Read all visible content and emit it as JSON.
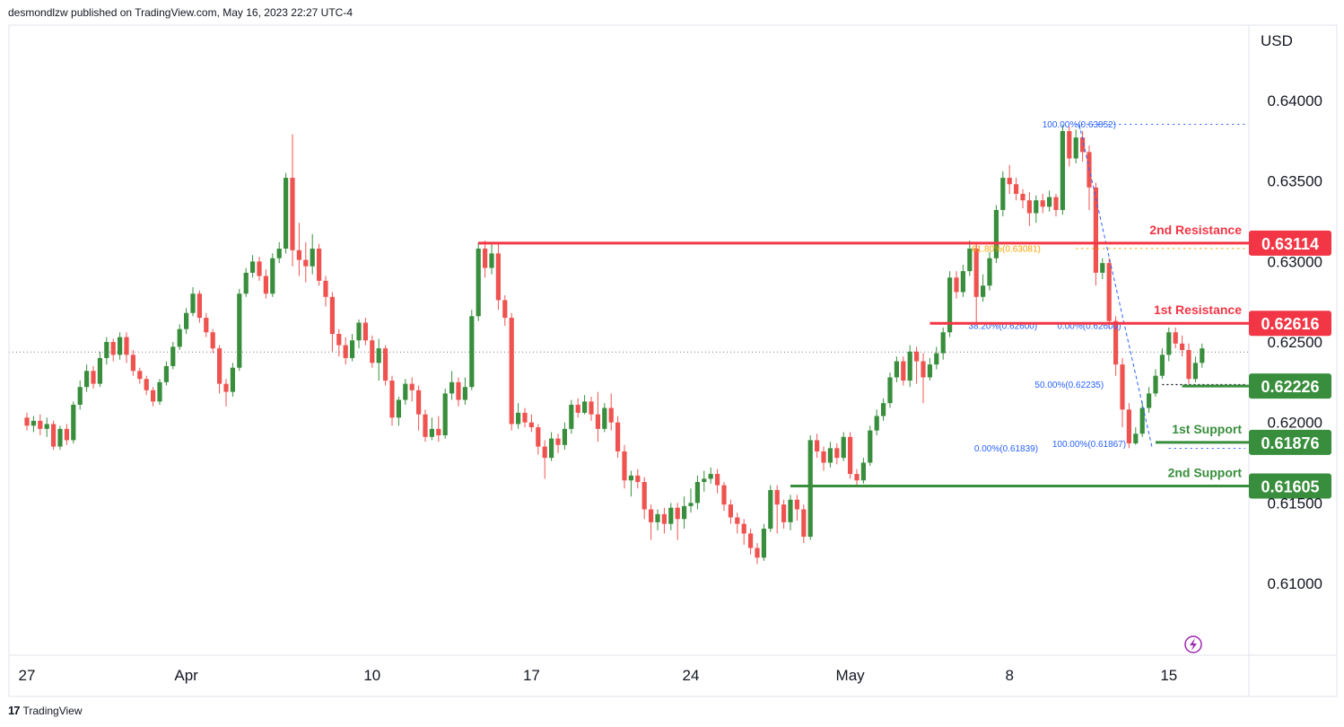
{
  "header": {
    "text": "desmondlzw published on TradingView.com, May 16, 2023 22:27 UTC-4"
  },
  "footer": {
    "logo": "17",
    "brand": "TradingView"
  },
  "chart_data": {
    "type": "candlestick",
    "currency": "USD",
    "y_ticks": [
      0.61,
      0.615,
      0.62,
      0.625,
      0.63,
      0.635,
      0.64
    ],
    "y_tick_labels": [
      "0.61000",
      "0.61500",
      "0.62000",
      "0.62500",
      "0.63000",
      "0.63500",
      "0.64000"
    ],
    "ylim": [
      0.6075,
      0.642
    ],
    "x_ticks": [
      {
        "label": "27",
        "index": 0
      },
      {
        "label": "Apr",
        "index": 24
      },
      {
        "label": "10",
        "index": 52
      },
      {
        "label": "17",
        "index": 76
      },
      {
        "label": "24",
        "index": 100
      },
      {
        "label": "May",
        "index": 124
      },
      {
        "label": "8",
        "index": 148
      },
      {
        "label": "15",
        "index": 172
      }
    ],
    "current_price": 0.62437,
    "levels": [
      {
        "name": "2nd Resistance",
        "price": 0.63114,
        "label": "0.63114",
        "color": "#f23645",
        "start_index": 68
      },
      {
        "name": "1st Resistance",
        "price": 0.62616,
        "label": "0.62616",
        "color": "#f23645",
        "start_index": 136
      },
      {
        "name": "",
        "price": 0.62226,
        "label": "0.62226",
        "color": "#388e3c",
        "start_index": 174
      },
      {
        "name": "1st Support",
        "price": 0.61876,
        "label": "0.61876",
        "color": "#388e3c",
        "start_index": 170
      },
      {
        "name": "2nd Support",
        "price": 0.61605,
        "label": "0.61605",
        "color": "#388e3c",
        "start_index": 115
      }
    ],
    "fib_labels": [
      {
        "text": "100.00%(0.63852)",
        "price": 0.63852,
        "index": 158.5,
        "color": "#2962ff"
      },
      {
        "text": "61.80%(0.63081)",
        "price": 0.63081,
        "index": 147.5,
        "color": "#f7a600"
      },
      {
        "text": "38.20%(0.62600)",
        "price": 0.626,
        "index": 147,
        "color": "#2962ff"
      },
      {
        "text": "0.00%(0.62600)",
        "price": 0.626,
        "index": 160,
        "color": "#2962ff"
      },
      {
        "text": "50.00%(0.62235)",
        "price": 0.62235,
        "index": 157,
        "color": "#2962ff"
      },
      {
        "text": "100.00%(0.61867)",
        "price": 0.61867,
        "index": 160,
        "color": "#2962ff"
      },
      {
        "text": "0.00%(0.61839)",
        "price": 0.61839,
        "index": 147.5,
        "color": "#2962ff"
      }
    ],
    "candles": [
      [
        0.6203,
        0.6198,
        0.6206,
        0.6195
      ],
      [
        0.6198,
        0.6201,
        0.6204,
        0.6194
      ],
      [
        0.6201,
        0.6196,
        0.6205,
        0.6192
      ],
      [
        0.6196,
        0.6199,
        0.6203,
        0.6191
      ],
      [
        0.6199,
        0.6185,
        0.6201,
        0.6183
      ],
      [
        0.6185,
        0.6196,
        0.6198,
        0.6183
      ],
      [
        0.6196,
        0.6189,
        0.6199,
        0.6186
      ],
      [
        0.6189,
        0.6211,
        0.6213,
        0.6187
      ],
      [
        0.6211,
        0.6222,
        0.6226,
        0.6208
      ],
      [
        0.6222,
        0.6232,
        0.6236,
        0.6219
      ],
      [
        0.6232,
        0.6224,
        0.6235,
        0.6221
      ],
      [
        0.6224,
        0.624,
        0.6244,
        0.6222
      ],
      [
        0.624,
        0.625,
        0.6253,
        0.6236
      ],
      [
        0.625,
        0.6242,
        0.6252,
        0.6238
      ],
      [
        0.6242,
        0.6253,
        0.6256,
        0.6239
      ],
      [
        0.6253,
        0.6242,
        0.6256,
        0.6237
      ],
      [
        0.6242,
        0.6232,
        0.6245,
        0.6229
      ],
      [
        0.6232,
        0.6227,
        0.6234,
        0.6224
      ],
      [
        0.6227,
        0.622,
        0.6229,
        0.6217
      ],
      [
        0.622,
        0.6213,
        0.6222,
        0.621
      ],
      [
        0.6213,
        0.6225,
        0.6227,
        0.6211
      ],
      [
        0.6225,
        0.6235,
        0.6238,
        0.6223
      ],
      [
        0.6235,
        0.6247,
        0.625,
        0.6233
      ],
      [
        0.6247,
        0.6258,
        0.6261,
        0.6245
      ],
      [
        0.6258,
        0.6268,
        0.6271,
        0.6255
      ],
      [
        0.6268,
        0.628,
        0.6284,
        0.6266
      ],
      [
        0.628,
        0.6265,
        0.6282,
        0.6262
      ],
      [
        0.6265,
        0.6256,
        0.6268,
        0.6253
      ],
      [
        0.6256,
        0.6246,
        0.6258,
        0.6243
      ],
      [
        0.6246,
        0.6224,
        0.6248,
        0.6218
      ],
      [
        0.6224,
        0.6219,
        0.6227,
        0.621
      ],
      [
        0.6219,
        0.6234,
        0.6237,
        0.6216
      ],
      [
        0.6234,
        0.628,
        0.6283,
        0.6232
      ],
      [
        0.628,
        0.6293,
        0.6296,
        0.6278
      ],
      [
        0.6293,
        0.63,
        0.6304,
        0.629
      ],
      [
        0.63,
        0.6291,
        0.6303,
        0.6288
      ],
      [
        0.6291,
        0.628,
        0.6295,
        0.6277
      ],
      [
        0.628,
        0.6302,
        0.6305,
        0.6278
      ],
      [
        0.6302,
        0.6308,
        0.6312,
        0.6299
      ],
      [
        0.6308,
        0.6352,
        0.6355,
        0.6305
      ],
      [
        0.6352,
        0.6307,
        0.6379,
        0.6297
      ],
      [
        0.6307,
        0.6301,
        0.6324,
        0.6291
      ],
      [
        0.6301,
        0.6297,
        0.6312,
        0.6287
      ],
      [
        0.6297,
        0.6308,
        0.6317,
        0.6292
      ],
      [
        0.6308,
        0.6288,
        0.6311,
        0.6285
      ],
      [
        0.6288,
        0.6278,
        0.6291,
        0.6272
      ],
      [
        0.6278,
        0.6255,
        0.6281,
        0.6244
      ],
      [
        0.6255,
        0.6248,
        0.6258,
        0.6241
      ],
      [
        0.6248,
        0.624,
        0.6253,
        0.6236
      ],
      [
        0.624,
        0.6251,
        0.6255,
        0.6238
      ],
      [
        0.6251,
        0.6262,
        0.6264,
        0.6246
      ],
      [
        0.6262,
        0.6251,
        0.6265,
        0.6248
      ],
      [
        0.6251,
        0.6237,
        0.6254,
        0.6234
      ],
      [
        0.6237,
        0.6246,
        0.6252,
        0.6226
      ],
      [
        0.6246,
        0.6226,
        0.6248,
        0.6223
      ],
      [
        0.6226,
        0.6203,
        0.6229,
        0.6198
      ],
      [
        0.6203,
        0.6214,
        0.6216,
        0.6198
      ],
      [
        0.6214,
        0.6224,
        0.6227,
        0.6211
      ],
      [
        0.6224,
        0.622,
        0.6228,
        0.6213
      ],
      [
        0.622,
        0.6205,
        0.6223,
        0.6195
      ],
      [
        0.6205,
        0.6191,
        0.6208,
        0.6188
      ],
      [
        0.6191,
        0.6196,
        0.6203,
        0.6189
      ],
      [
        0.6196,
        0.6192,
        0.6204,
        0.6188
      ],
      [
        0.6192,
        0.6218,
        0.6221,
        0.619
      ],
      [
        0.6218,
        0.6225,
        0.6232,
        0.6214
      ],
      [
        0.6225,
        0.6214,
        0.6228,
        0.621
      ],
      [
        0.6214,
        0.6222,
        0.6228,
        0.6211
      ],
      [
        0.6222,
        0.6266,
        0.627,
        0.622
      ],
      [
        0.6266,
        0.6308,
        0.6312,
        0.6263
      ],
      [
        0.6308,
        0.6296,
        0.6313,
        0.629
      ],
      [
        0.6296,
        0.6305,
        0.6311,
        0.6292
      ],
      [
        0.6305,
        0.6276,
        0.6312,
        0.627
      ],
      [
        0.6276,
        0.6265,
        0.6279,
        0.626
      ],
      [
        0.6265,
        0.6199,
        0.6268,
        0.6195
      ],
      [
        0.6199,
        0.6206,
        0.6212,
        0.6196
      ],
      [
        0.6206,
        0.62,
        0.6209,
        0.6197
      ],
      [
        0.62,
        0.6197,
        0.6205,
        0.6194
      ],
      [
        0.6197,
        0.6185,
        0.6199,
        0.618
      ],
      [
        0.6185,
        0.6178,
        0.6189,
        0.6165
      ],
      [
        0.6178,
        0.619,
        0.6194,
        0.6176
      ],
      [
        0.619,
        0.6186,
        0.6193,
        0.6181
      ],
      [
        0.6186,
        0.6196,
        0.62,
        0.6183
      ],
      [
        0.6196,
        0.6211,
        0.6214,
        0.6193
      ],
      [
        0.6211,
        0.6206,
        0.6215,
        0.6203
      ],
      [
        0.6206,
        0.6213,
        0.6217,
        0.6205
      ],
      [
        0.6213,
        0.6205,
        0.6216,
        0.6201
      ],
      [
        0.6205,
        0.6196,
        0.6219,
        0.6188
      ],
      [
        0.6196,
        0.6209,
        0.6212,
        0.6194
      ],
      [
        0.6209,
        0.62,
        0.6218,
        0.6195
      ],
      [
        0.62,
        0.6182,
        0.6204,
        0.6178
      ],
      [
        0.6182,
        0.6164,
        0.6186,
        0.6159
      ],
      [
        0.6164,
        0.6167,
        0.617,
        0.6154
      ],
      [
        0.6167,
        0.6163,
        0.6171,
        0.6159
      ],
      [
        0.6163,
        0.6146,
        0.6166,
        0.614
      ],
      [
        0.6146,
        0.6138,
        0.6149,
        0.6127
      ],
      [
        0.6138,
        0.6143,
        0.6146,
        0.6133
      ],
      [
        0.6143,
        0.6137,
        0.6147,
        0.6131
      ],
      [
        0.6137,
        0.6147,
        0.615,
        0.6133
      ],
      [
        0.6147,
        0.614,
        0.615,
        0.6127
      ],
      [
        0.614,
        0.6148,
        0.6154,
        0.6134
      ],
      [
        0.6148,
        0.615,
        0.6159,
        0.6144
      ],
      [
        0.615,
        0.6163,
        0.6167,
        0.6146
      ],
      [
        0.6163,
        0.6165,
        0.617,
        0.6157
      ],
      [
        0.6165,
        0.6168,
        0.6172,
        0.6162
      ],
      [
        0.6168,
        0.6161,
        0.6171,
        0.6156
      ],
      [
        0.6161,
        0.6149,
        0.6163,
        0.6145
      ],
      [
        0.6149,
        0.6141,
        0.6152,
        0.6137
      ],
      [
        0.6141,
        0.6137,
        0.6144,
        0.6131
      ],
      [
        0.6137,
        0.6131,
        0.614,
        0.6124
      ],
      [
        0.6131,
        0.6122,
        0.6134,
        0.6118
      ],
      [
        0.6122,
        0.6116,
        0.6125,
        0.6112
      ],
      [
        0.6116,
        0.6134,
        0.6137,
        0.6114
      ],
      [
        0.6134,
        0.6158,
        0.6161,
        0.6132
      ],
      [
        0.6158,
        0.6149,
        0.6161,
        0.6131
      ],
      [
        0.6149,
        0.6138,
        0.6152,
        0.6134
      ],
      [
        0.6138,
        0.6152,
        0.6155,
        0.6133
      ],
      [
        0.6152,
        0.6146,
        0.6155,
        0.6139
      ],
      [
        0.6146,
        0.6129,
        0.6149,
        0.6125
      ],
      [
        0.6129,
        0.6189,
        0.6192,
        0.6127
      ],
      [
        0.6189,
        0.6182,
        0.6193,
        0.6178
      ],
      [
        0.6182,
        0.6175,
        0.6185,
        0.617
      ],
      [
        0.6175,
        0.6184,
        0.6188,
        0.6172
      ],
      [
        0.6184,
        0.6178,
        0.6187,
        0.6174
      ],
      [
        0.6178,
        0.6191,
        0.6194,
        0.6176
      ],
      [
        0.6191,
        0.6168,
        0.6194,
        0.6165
      ],
      [
        0.6168,
        0.6164,
        0.6171,
        0.616
      ],
      [
        0.6164,
        0.6175,
        0.6178,
        0.6162
      ],
      [
        0.6175,
        0.6195,
        0.6198,
        0.6173
      ],
      [
        0.6195,
        0.6204,
        0.6208,
        0.6192
      ],
      [
        0.6204,
        0.6212,
        0.6215,
        0.6201
      ],
      [
        0.6212,
        0.6228,
        0.6231,
        0.6209
      ],
      [
        0.6228,
        0.6238,
        0.6241,
        0.6225
      ],
      [
        0.6238,
        0.6226,
        0.6241,
        0.6223
      ],
      [
        0.6226,
        0.6244,
        0.6248,
        0.6222
      ],
      [
        0.6244,
        0.6238,
        0.6247,
        0.6224
      ],
      [
        0.6238,
        0.6228,
        0.6243,
        0.6212
      ],
      [
        0.6228,
        0.6236,
        0.624,
        0.6226
      ],
      [
        0.6236,
        0.6243,
        0.6247,
        0.6233
      ],
      [
        0.6243,
        0.6256,
        0.6259,
        0.6239
      ],
      [
        0.6256,
        0.629,
        0.6294,
        0.6253
      ],
      [
        0.629,
        0.6281,
        0.6294,
        0.6277
      ],
      [
        0.6281,
        0.6294,
        0.6298,
        0.6278
      ],
      [
        0.6294,
        0.6308,
        0.6313,
        0.6291
      ],
      [
        0.6308,
        0.6278,
        0.6311,
        0.6262
      ],
      [
        0.6278,
        0.6285,
        0.6292,
        0.6275
      ],
      [
        0.6285,
        0.6302,
        0.6306,
        0.6282
      ],
      [
        0.6302,
        0.6332,
        0.6335,
        0.6299
      ],
      [
        0.6332,
        0.6352,
        0.6356,
        0.6328
      ],
      [
        0.6352,
        0.6348,
        0.636,
        0.6342
      ],
      [
        0.6348,
        0.6342,
        0.6352,
        0.6338
      ],
      [
        0.6342,
        0.6338,
        0.6345,
        0.6333
      ],
      [
        0.6338,
        0.633,
        0.6343,
        0.6322
      ],
      [
        0.633,
        0.6338,
        0.6341,
        0.6324
      ],
      [
        0.6338,
        0.6334,
        0.6342,
        0.633
      ],
      [
        0.6334,
        0.634,
        0.6344,
        0.6331
      ],
      [
        0.634,
        0.6332,
        0.6342,
        0.6328
      ],
      [
        0.6332,
        0.6381,
        0.6385,
        0.6329
      ],
      [
        0.6381,
        0.6364,
        0.6384,
        0.6359
      ],
      [
        0.6364,
        0.6377,
        0.6382,
        0.6361
      ],
      [
        0.6377,
        0.6368,
        0.6381,
        0.6362
      ],
      [
        0.6368,
        0.6346,
        0.6372,
        0.6332
      ],
      [
        0.6346,
        0.6293,
        0.6349,
        0.6285
      ],
      [
        0.6293,
        0.6299,
        0.6302,
        0.6289
      ],
      [
        0.6299,
        0.6263,
        0.6302,
        0.6258
      ],
      [
        0.6263,
        0.6236,
        0.6266,
        0.6229
      ],
      [
        0.6236,
        0.6208,
        0.624,
        0.6197
      ],
      [
        0.6208,
        0.6187,
        0.6212,
        0.6184
      ],
      [
        0.6187,
        0.6193,
        0.6197,
        0.6186
      ],
      [
        0.6193,
        0.6209,
        0.6213,
        0.6191
      ],
      [
        0.6209,
        0.6218,
        0.6222,
        0.6206
      ],
      [
        0.6218,
        0.6229,
        0.6233,
        0.6216
      ],
      [
        0.6229,
        0.6242,
        0.6246,
        0.6227
      ],
      [
        0.6242,
        0.6256,
        0.6259,
        0.6238
      ],
      [
        0.6256,
        0.6249,
        0.6259,
        0.6246
      ],
      [
        0.6249,
        0.6245,
        0.6254,
        0.6241
      ],
      [
        0.6245,
        0.6227,
        0.6249,
        0.6224
      ],
      [
        0.6227,
        0.6237,
        0.6241,
        0.6225
      ],
      [
        0.6237,
        0.6246,
        0.6249,
        0.6234
      ]
    ]
  }
}
